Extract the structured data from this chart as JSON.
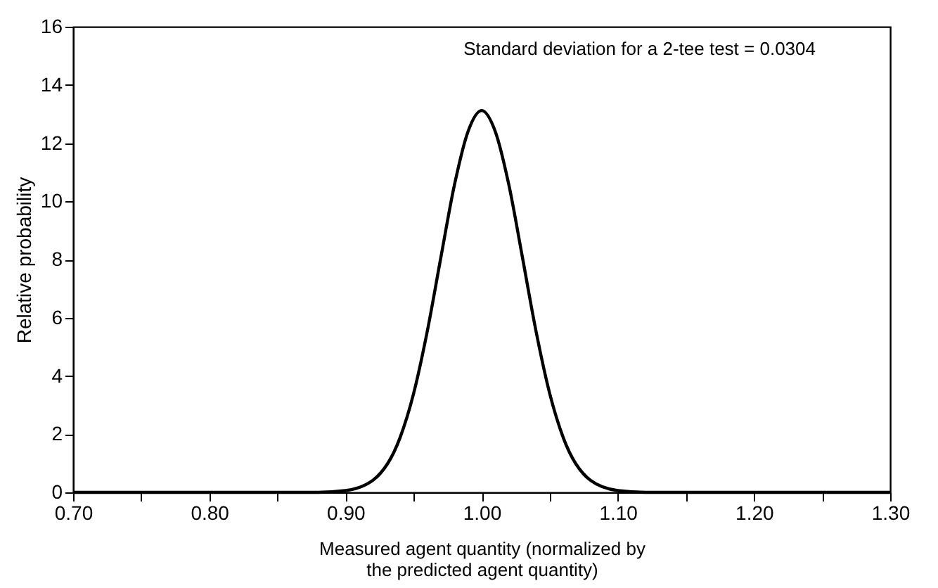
{
  "chart_data": {
    "type": "line",
    "xlabel": "Measured agent quantity (normalized by\nthe predicted agent quantity)",
    "ylabel": "Relative probability",
    "annotations": [
      "Standard deviation for a 2-tee test = 0.0304"
    ],
    "x": [
      0.7,
      0.8,
      0.88,
      0.9,
      0.92,
      0.94,
      0.95,
      0.96,
      0.97,
      0.98,
      0.99,
      1.0,
      1.01,
      1.02,
      1.03,
      1.04,
      1.05,
      1.06,
      1.08,
      1.1,
      1.12,
      1.2,
      1.3
    ],
    "series": [
      {
        "color": "#000000",
        "values": [
          0,
          0,
          0,
          0.06,
          0.41,
          1.87,
          3.39,
          5.52,
          8.06,
          10.56,
          12.4,
          13.12,
          12.4,
          10.56,
          8.06,
          5.52,
          3.39,
          1.87,
          0.41,
          0.06,
          0,
          0,
          0
        ]
      }
    ],
    "xlim": [
      0.7,
      1.3
    ],
    "xticks": [
      {
        "value": 0.7,
        "label": "0.70"
      },
      {
        "value": 0.75,
        "label": null
      },
      {
        "value": 0.8,
        "label": "0.80"
      },
      {
        "value": 0.85,
        "label": null
      },
      {
        "value": 0.9,
        "label": "0.90"
      },
      {
        "value": 0.95,
        "label": null
      },
      {
        "value": 1.0,
        "label": "1.00"
      },
      {
        "value": 1.05,
        "label": null
      },
      {
        "value": 1.1,
        "label": "1.10"
      },
      {
        "value": 1.15,
        "label": null
      },
      {
        "value": 1.2,
        "label": "1.20"
      },
      {
        "value": 1.25,
        "label": null
      },
      {
        "value": 1.3,
        "label": "1.30"
      }
    ],
    "ylim": [
      0,
      16
    ],
    "yticks": [
      0,
      2,
      4,
      6,
      8,
      10,
      12,
      14,
      16
    ],
    "grid": false,
    "marker": "none",
    "line_style": "solid"
  }
}
